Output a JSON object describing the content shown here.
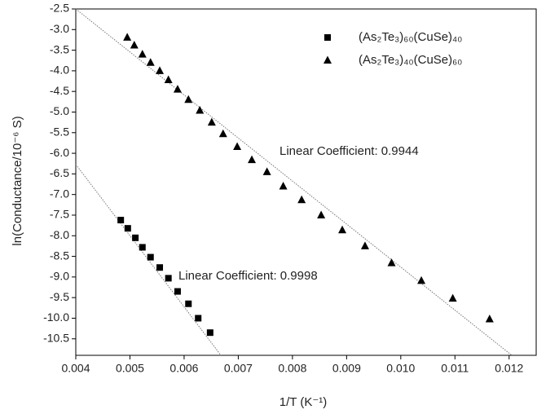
{
  "chart_data": {
    "type": "scatter",
    "xlabel": "1/T (K⁻¹)",
    "ylabel": "ln(Conductance/10⁻⁶ S)",
    "xlim": [
      0.004,
      0.0125
    ],
    "ylim": [
      -10.9,
      -2.5
    ],
    "xticks": [
      0.004,
      0.005,
      0.006,
      0.007,
      0.008,
      0.009,
      {
        "value": 0.01,
        "label": "0.010"
      },
      0.011,
      0.012
    ],
    "yticks": [
      -2.5,
      {
        "value": -3,
        "label": "-3.0"
      },
      -3.5,
      {
        "value": -4,
        "label": "-4.0"
      },
      -4.5,
      {
        "value": -5,
        "label": "-5.0"
      },
      -5.5,
      {
        "value": -6,
        "label": "-6.0"
      },
      -6.5,
      {
        "value": -7,
        "label": "-7.0"
      },
      -7.5,
      {
        "value": -8,
        "label": "-8.0"
      },
      -8.5,
      {
        "value": -9,
        "label": "-9.0"
      },
      -9.5,
      {
        "value": -10,
        "label": "-10.0"
      },
      -10.5
    ],
    "legend": "upper right",
    "series": [
      {
        "name": "(As₂Te₃)₆₀(CuSe)₄₀",
        "marker": "square",
        "color": "#000000",
        "x": [
          0.00483,
          0.00496,
          0.0051,
          0.00523,
          0.00538,
          0.00555,
          0.00571,
          0.00588,
          0.00608,
          0.00626,
          0.00648
        ],
        "values": [
          -7.62,
          -7.82,
          -8.05,
          -8.28,
          -8.52,
          -8.77,
          -9.03,
          -9.35,
          -9.65,
          -10.0,
          -10.35
        ]
      },
      {
        "name": "(As₂Te₃)₄₀(CuSe)₆₀",
        "marker": "triangle",
        "color": "#000000",
        "x": [
          0.00495,
          0.00508,
          0.00523,
          0.00538,
          0.00555,
          0.00571,
          0.00588,
          0.00608,
          0.00629,
          0.00651,
          0.00672,
          0.00698,
          0.00725,
          0.00753,
          0.00783,
          0.00817,
          0.00853,
          0.00892,
          0.00934,
          0.00983,
          0.01038,
          0.01096,
          0.01164
        ],
        "values": [
          -3.19,
          -3.38,
          -3.6,
          -3.8,
          -4.0,
          -4.22,
          -4.45,
          -4.7,
          -4.96,
          -5.25,
          -5.53,
          -5.84,
          -6.16,
          -6.45,
          -6.8,
          -7.13,
          -7.5,
          -7.86,
          -8.25,
          -8.66,
          -9.09,
          -9.52,
          -10.02
        ]
      }
    ],
    "fit_lines": [
      {
        "color": "#777777",
        "x": [
          0.004,
          0.00668
        ],
        "values": [
          -6.27,
          -10.9
        ]
      },
      {
        "color": "#777777",
        "x": [
          0.004,
          0.01205
        ],
        "values": [
          -2.5,
          -10.9
        ]
      }
    ],
    "annotations": [
      "Linear Coefficient: 0.9944",
      "Linear Coefficient: 0.9998"
    ]
  }
}
